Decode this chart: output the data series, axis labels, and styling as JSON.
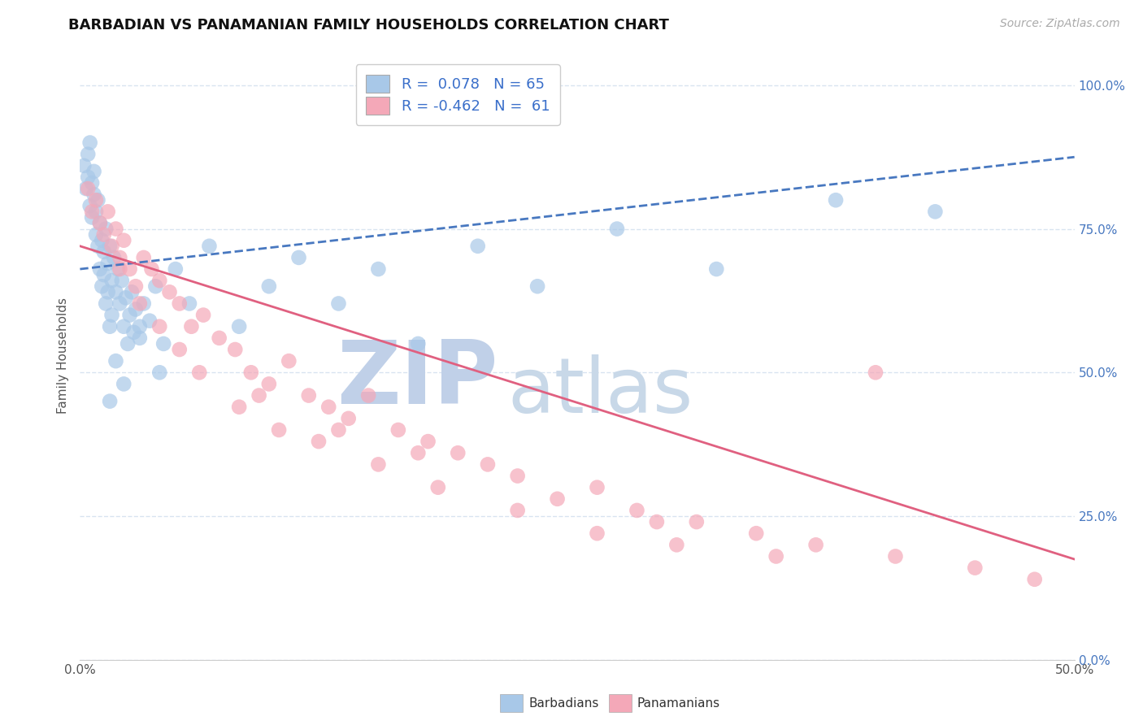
{
  "title": "BARBADIAN VS PANAMANIAN FAMILY HOUSEHOLDS CORRELATION CHART",
  "source": "Source: ZipAtlas.com",
  "ylabel": "Family Households",
  "xmin": 0.0,
  "xmax": 0.5,
  "ymin": 0.0,
  "ymax": 1.06,
  "xticks": [
    0.0,
    0.5
  ],
  "xticklabels": [
    "0.0%",
    "50.0%"
  ],
  "yticks": [
    0.0,
    0.25,
    0.5,
    0.75,
    1.0
  ],
  "yticklabels": [
    "0.0%",
    "25.0%",
    "50.0%",
    "75.0%",
    "100.0%"
  ],
  "legend_line1": "R =  0.078   N = 65",
  "legend_line2": "R = -0.462   N =  61",
  "blue_color": "#a8c8e8",
  "pink_color": "#f4a8b8",
  "blue_line_color": "#4878c0",
  "pink_line_color": "#e06080",
  "grid_color": "#d8e4f0",
  "watermark_zip": "ZIP",
  "watermark_atlas": "atlas",
  "watermark_zip_color": "#c0d0e8",
  "watermark_atlas_color": "#c8d8e8",
  "bg_color": "#ffffff",
  "blue_dots_x": [
    0.002,
    0.003,
    0.004,
    0.004,
    0.005,
    0.005,
    0.006,
    0.006,
    0.007,
    0.007,
    0.008,
    0.008,
    0.009,
    0.009,
    0.01,
    0.01,
    0.011,
    0.011,
    0.012,
    0.012,
    0.013,
    0.013,
    0.014,
    0.014,
    0.015,
    0.015,
    0.016,
    0.016,
    0.017,
    0.018,
    0.019,
    0.02,
    0.021,
    0.022,
    0.023,
    0.024,
    0.025,
    0.026,
    0.027,
    0.028,
    0.03,
    0.032,
    0.035,
    0.038,
    0.042,
    0.048,
    0.055,
    0.065,
    0.08,
    0.095,
    0.11,
    0.13,
    0.15,
    0.17,
    0.2,
    0.23,
    0.27,
    0.32,
    0.38,
    0.43,
    0.015,
    0.018,
    0.022,
    0.03,
    0.04
  ],
  "blue_dots_y": [
    0.86,
    0.82,
    0.88,
    0.84,
    0.9,
    0.79,
    0.83,
    0.77,
    0.85,
    0.81,
    0.78,
    0.74,
    0.8,
    0.72,
    0.76,
    0.68,
    0.73,
    0.65,
    0.71,
    0.67,
    0.75,
    0.62,
    0.69,
    0.64,
    0.72,
    0.58,
    0.66,
    0.6,
    0.7,
    0.64,
    0.68,
    0.62,
    0.66,
    0.58,
    0.63,
    0.55,
    0.6,
    0.64,
    0.57,
    0.61,
    0.56,
    0.62,
    0.59,
    0.65,
    0.55,
    0.68,
    0.62,
    0.72,
    0.58,
    0.65,
    0.7,
    0.62,
    0.68,
    0.55,
    0.72,
    0.65,
    0.75,
    0.68,
    0.8,
    0.78,
    0.45,
    0.52,
    0.48,
    0.58,
    0.5
  ],
  "pink_dots_x": [
    0.004,
    0.006,
    0.008,
    0.01,
    0.012,
    0.014,
    0.016,
    0.018,
    0.02,
    0.022,
    0.025,
    0.028,
    0.032,
    0.036,
    0.04,
    0.045,
    0.05,
    0.056,
    0.062,
    0.07,
    0.078,
    0.086,
    0.095,
    0.105,
    0.115,
    0.125,
    0.135,
    0.145,
    0.16,
    0.175,
    0.19,
    0.205,
    0.22,
    0.24,
    0.26,
    0.28,
    0.31,
    0.34,
    0.37,
    0.41,
    0.45,
    0.48,
    0.02,
    0.03,
    0.04,
    0.06,
    0.08,
    0.1,
    0.12,
    0.15,
    0.18,
    0.22,
    0.26,
    0.3,
    0.35,
    0.29,
    0.17,
    0.13,
    0.09,
    0.05,
    0.4
  ],
  "pink_dots_y": [
    0.82,
    0.78,
    0.8,
    0.76,
    0.74,
    0.78,
    0.72,
    0.75,
    0.7,
    0.73,
    0.68,
    0.65,
    0.7,
    0.68,
    0.66,
    0.64,
    0.62,
    0.58,
    0.6,
    0.56,
    0.54,
    0.5,
    0.48,
    0.52,
    0.46,
    0.44,
    0.42,
    0.46,
    0.4,
    0.38,
    0.36,
    0.34,
    0.32,
    0.28,
    0.3,
    0.26,
    0.24,
    0.22,
    0.2,
    0.18,
    0.16,
    0.14,
    0.68,
    0.62,
    0.58,
    0.5,
    0.44,
    0.4,
    0.38,
    0.34,
    0.3,
    0.26,
    0.22,
    0.2,
    0.18,
    0.24,
    0.36,
    0.4,
    0.46,
    0.54,
    0.5
  ],
  "blue_trend_x": [
    0.0,
    0.5
  ],
  "blue_trend_y": [
    0.68,
    0.875
  ],
  "pink_trend_x": [
    0.0,
    0.5
  ],
  "pink_trend_y": [
    0.72,
    0.175
  ],
  "bottom_label_barbadians": "Barbadians",
  "bottom_label_panamanians": "Panamanians",
  "title_fontsize": 13,
  "source_fontsize": 10,
  "tick_fontsize": 11,
  "ylabel_fontsize": 11,
  "legend_fontsize": 13
}
